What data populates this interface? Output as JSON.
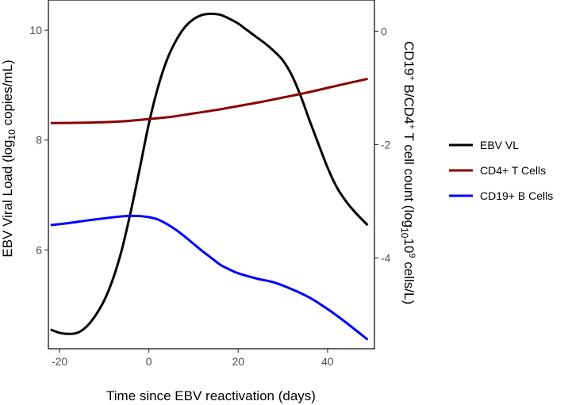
{
  "chart_data": {
    "type": "line",
    "x_label": "Time since EBV reactivation (days)",
    "y_left_label": {
      "main": "EBV Viral Load (log",
      "sub": "10",
      "tail": " copies/mL)"
    },
    "y_right_label": {
      "part1": "CD19",
      "sup1": "+",
      "part2": " B/CD4",
      "sup2": "+",
      "part3": " T cell count (log",
      "sub": "10",
      "part4": "10",
      "sup3": "9",
      "part5": " cells/L)"
    },
    "x_range": [
      -22.5,
      50.5
    ],
    "x_ticks": [
      -20,
      0,
      20,
      40
    ],
    "x_tick_labels": [
      "-20",
      "0",
      "20",
      "40"
    ],
    "y_left_range": [
      4.2,
      10.55
    ],
    "y_left_ticks": [
      6,
      8,
      10
    ],
    "y_left_tick_labels": [
      "6",
      "8",
      "10"
    ],
    "y_right_range": [
      -5.6,
      0.55
    ],
    "y_right_ticks": [
      -4,
      -2,
      0
    ],
    "y_right_tick_labels": [
      "-4",
      "-2",
      "0"
    ],
    "legend_position": "right",
    "series": [
      {
        "name": "EBV VL",
        "axis": "left",
        "color": "#000000",
        "x": [
          -22,
          -20,
          -18,
          -16,
          -14,
          -12,
          -10,
          -8,
          -6,
          -4,
          -2,
          0,
          2,
          4,
          6,
          8,
          10,
          12,
          14,
          16,
          18,
          20,
          22,
          24,
          26,
          28,
          30,
          32,
          34,
          36,
          38,
          40,
          42,
          44,
          46,
          48,
          49
        ],
        "y": [
          4.55,
          4.49,
          4.47,
          4.49,
          4.6,
          4.8,
          5.08,
          5.48,
          6.02,
          6.72,
          7.5,
          8.3,
          8.95,
          9.45,
          9.8,
          10.05,
          10.2,
          10.28,
          10.3,
          10.28,
          10.21,
          10.12,
          10.0,
          9.88,
          9.76,
          9.62,
          9.45,
          9.18,
          8.8,
          8.35,
          7.92,
          7.5,
          7.15,
          6.9,
          6.7,
          6.53,
          6.45
        ]
      },
      {
        "name": "CD4+ T Cells",
        "axis": "right",
        "color": "#8b0000",
        "x": [
          -22,
          -15,
          -10,
          -5,
          0,
          5,
          10,
          15,
          20,
          25,
          30,
          35,
          40,
          45,
          49
        ],
        "y": [
          -1.62,
          -1.615,
          -1.605,
          -1.585,
          -1.55,
          -1.51,
          -1.45,
          -1.39,
          -1.32,
          -1.25,
          -1.17,
          -1.09,
          -1.0,
          -0.91,
          -0.84
        ]
      },
      {
        "name": "CD19+ B Cells",
        "axis": "right",
        "color": "#0000ff",
        "x": [
          -22,
          -18,
          -14,
          -10,
          -6,
          -4,
          -2,
          0,
          2,
          4,
          6,
          8,
          10,
          12,
          14,
          16,
          18,
          20,
          24,
          28,
          32,
          36,
          40,
          44,
          49
        ],
        "y": [
          -3.42,
          -3.385,
          -3.34,
          -3.3,
          -3.265,
          -3.258,
          -3.26,
          -3.28,
          -3.32,
          -3.4,
          -3.5,
          -3.62,
          -3.75,
          -3.88,
          -4.0,
          -4.12,
          -4.2,
          -4.27,
          -4.36,
          -4.43,
          -4.55,
          -4.7,
          -4.9,
          -5.13,
          -5.44
        ]
      }
    ]
  }
}
